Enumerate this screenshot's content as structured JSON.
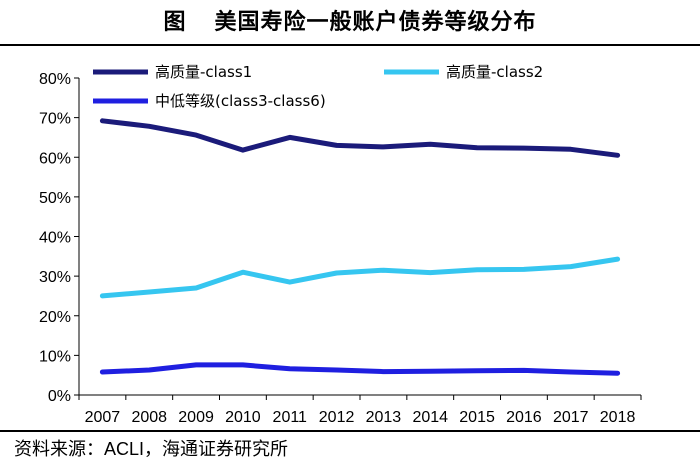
{
  "header": {
    "figure_label": "图",
    "title": "美国寿险一般账户债券等级分布"
  },
  "footer": {
    "source_label": "资料来源：",
    "source_value": "ACLI，海通证券研究所"
  },
  "colors": {
    "series1": "#1b1b7a",
    "series2": "#36c6f0",
    "series3": "#1f1fe0",
    "axis": "#000000"
  },
  "chart_data": {
    "type": "line",
    "title": "美国寿险一般账户债券等级分布",
    "xlabel": "",
    "ylabel": "",
    "x": [
      "2007",
      "2008",
      "2009",
      "2010",
      "2011",
      "2012",
      "2013",
      "2014",
      "2015",
      "2016",
      "2017",
      "2018"
    ],
    "ylim": [
      0,
      80
    ],
    "yticks": [
      "0%",
      "10%",
      "20%",
      "30%",
      "40%",
      "50%",
      "60%",
      "70%",
      "80%"
    ],
    "grid": false,
    "legend_position": "top",
    "series": [
      {
        "name": "高质量-class1",
        "color": "#1b1b7a",
        "values": [
          69.2,
          67.8,
          65.6,
          61.8,
          65.0,
          63.0,
          62.6,
          63.3,
          62.4,
          62.3,
          62.0,
          60.5
        ]
      },
      {
        "name": "高质量-class2",
        "color": "#36c6f0",
        "values": [
          25.0,
          26.0,
          27.0,
          31.0,
          28.5,
          30.8,
          31.5,
          30.9,
          31.6,
          31.7,
          32.4,
          34.3
        ]
      },
      {
        "name": "中低等级(class3-class6)",
        "color": "#1f1fe0",
        "values": [
          5.8,
          6.3,
          7.6,
          7.6,
          6.6,
          6.3,
          5.9,
          6.0,
          6.1,
          6.2,
          5.8,
          5.5
        ]
      }
    ]
  }
}
